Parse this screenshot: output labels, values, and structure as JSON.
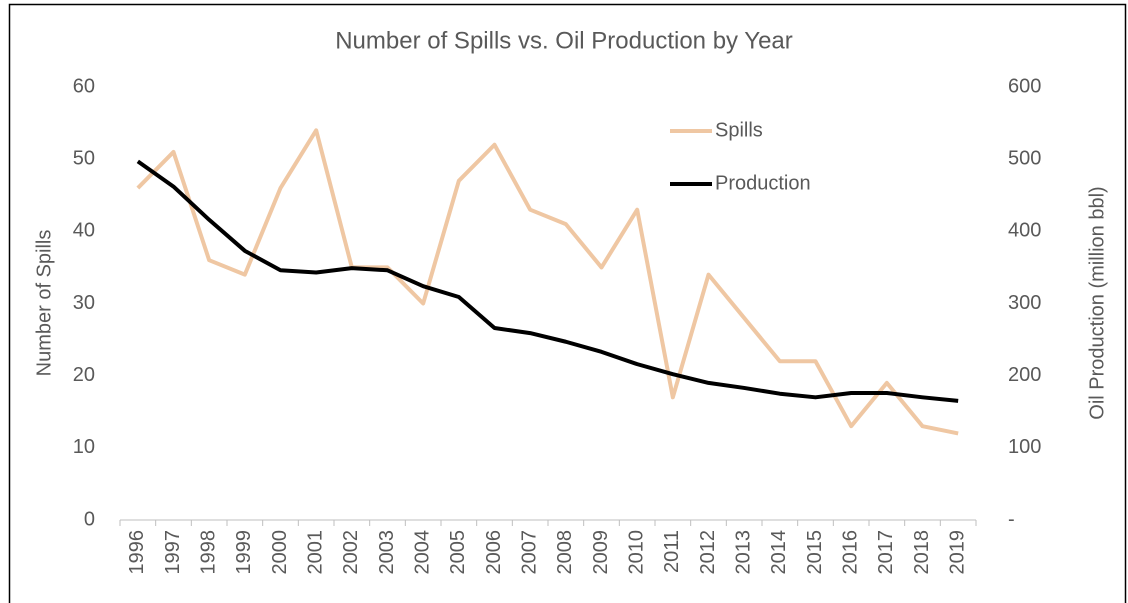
{
  "chart_data": {
    "type": "line",
    "title": "Number of Spills vs. Oil Production by Year",
    "y_label": "Number of Spills",
    "y2_label": "Oil Production (million bbl)",
    "categories": [
      "1996",
      "1997",
      "1998",
      "1999",
      "2000",
      "2001",
      "2002",
      "2003",
      "2004",
      "2005",
      "2006",
      "2007",
      "2008",
      "2009",
      "2010",
      "2011",
      "2012",
      "2013",
      "2014",
      "2015",
      "2016",
      "2017",
      "2018",
      "2019"
    ],
    "series": [
      {
        "name": "Spills",
        "color": "#efc7a3",
        "values": [
          46,
          51,
          36,
          34,
          46,
          54,
          35,
          35,
          30,
          47,
          52,
          43,
          41,
          35,
          43,
          17,
          34,
          28,
          22,
          22,
          13,
          19,
          13,
          12
        ]
      },
      {
        "name": "Production",
        "color": "#000000",
        "axis": "y2",
        "values": [
          497,
          462,
          416,
          373,
          346,
          343,
          349,
          346,
          324,
          309,
          266,
          259,
          247,
          233,
          216,
          202,
          190,
          183,
          175,
          170,
          176,
          176,
          170,
          165
        ]
      }
    ],
    "ylim": [
      0,
      60
    ],
    "yticks": [
      0,
      10,
      20,
      30,
      40,
      50,
      60
    ],
    "y2lim": [
      0,
      600
    ],
    "y2ticks": [
      {
        "value": 0,
        "label": "-"
      },
      100,
      200,
      300,
      400,
      500,
      600
    ],
    "grid": false,
    "legend": "top-right"
  }
}
